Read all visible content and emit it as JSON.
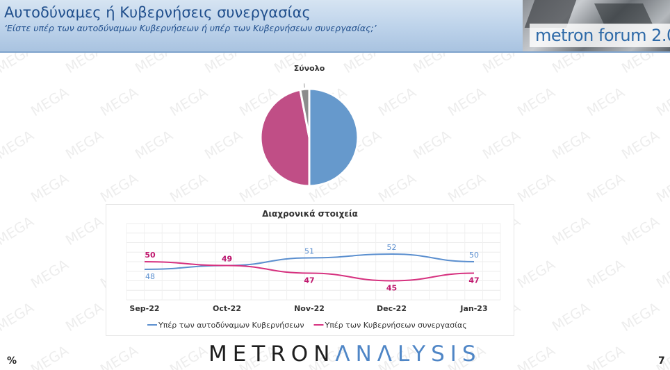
{
  "slide": {
    "title": "Αυτοδύναμες ή Κυβερνήσεις συνεργασίας",
    "subtitle": "‘Είστε υπέρ των αυτοδύναμων Κυβερνήσεων ή υπέρ των Κυβερνήσεων συνεργασίας;’",
    "forum_logo": "metron forum 2.0",
    "footer_brand_part1": "METRON",
    "footer_brand_part2": "ΛNΛLYSIS",
    "unit": "%",
    "page_number": "7",
    "watermark_text": "MEGA",
    "colors": {
      "header_text": "#1f4e8c",
      "series_1": "#5b8fcf",
      "series_2": "#d6317f",
      "pie_1": "#6699cc",
      "pie_2": "#c04e86",
      "pie_3": "#8c8c8c"
    }
  },
  "chart_data": [
    {
      "type": "pie",
      "title": "Σύνολο",
      "slices": [
        {
          "value": 50,
          "color": "#6699cc"
        },
        {
          "value": 47,
          "color": "#c04e86"
        },
        {
          "value": 3,
          "color": "#8c8c8c"
        }
      ]
    },
    {
      "type": "line",
      "title": "Διαχρονικά στοιχεία",
      "categories": [
        "Sep-22",
        "Oct-22",
        "Nov-22",
        "Dec-22",
        "Jan-23"
      ],
      "ylim": [
        40,
        60
      ],
      "grid": true,
      "legend": "bottom",
      "series": [
        {
          "name": "Υπέρ των αυτοδύναμων Κυβερνήσεων",
          "values": [
            48,
            49,
            51,
            52,
            50
          ],
          "color": "#5b8fcf"
        },
        {
          "name": "Υπέρ των Κυβερνήσεων συνεργασίας",
          "values": [
            50,
            49,
            47,
            45,
            47
          ],
          "color": "#d6317f"
        }
      ]
    }
  ]
}
